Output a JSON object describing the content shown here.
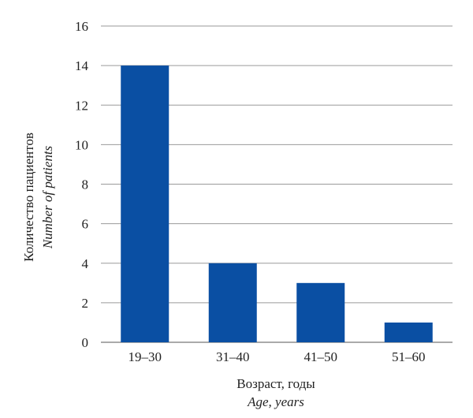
{
  "chart_data": {
    "type": "bar",
    "categories": [
      "19–30",
      "31–40",
      "41–50",
      "51–60"
    ],
    "values": [
      14,
      4,
      3,
      1
    ],
    "ylim": [
      0,
      16
    ],
    "yticks": [
      0,
      2,
      4,
      6,
      8,
      10,
      12,
      14,
      16
    ],
    "xlabel": "Возраст, годы",
    "xlabel_en": "Age, years",
    "ylabel": "Количество пациентов",
    "ylabel_en": "Number of patients",
    "grid": true,
    "bar_color": "#0a4fa3"
  }
}
